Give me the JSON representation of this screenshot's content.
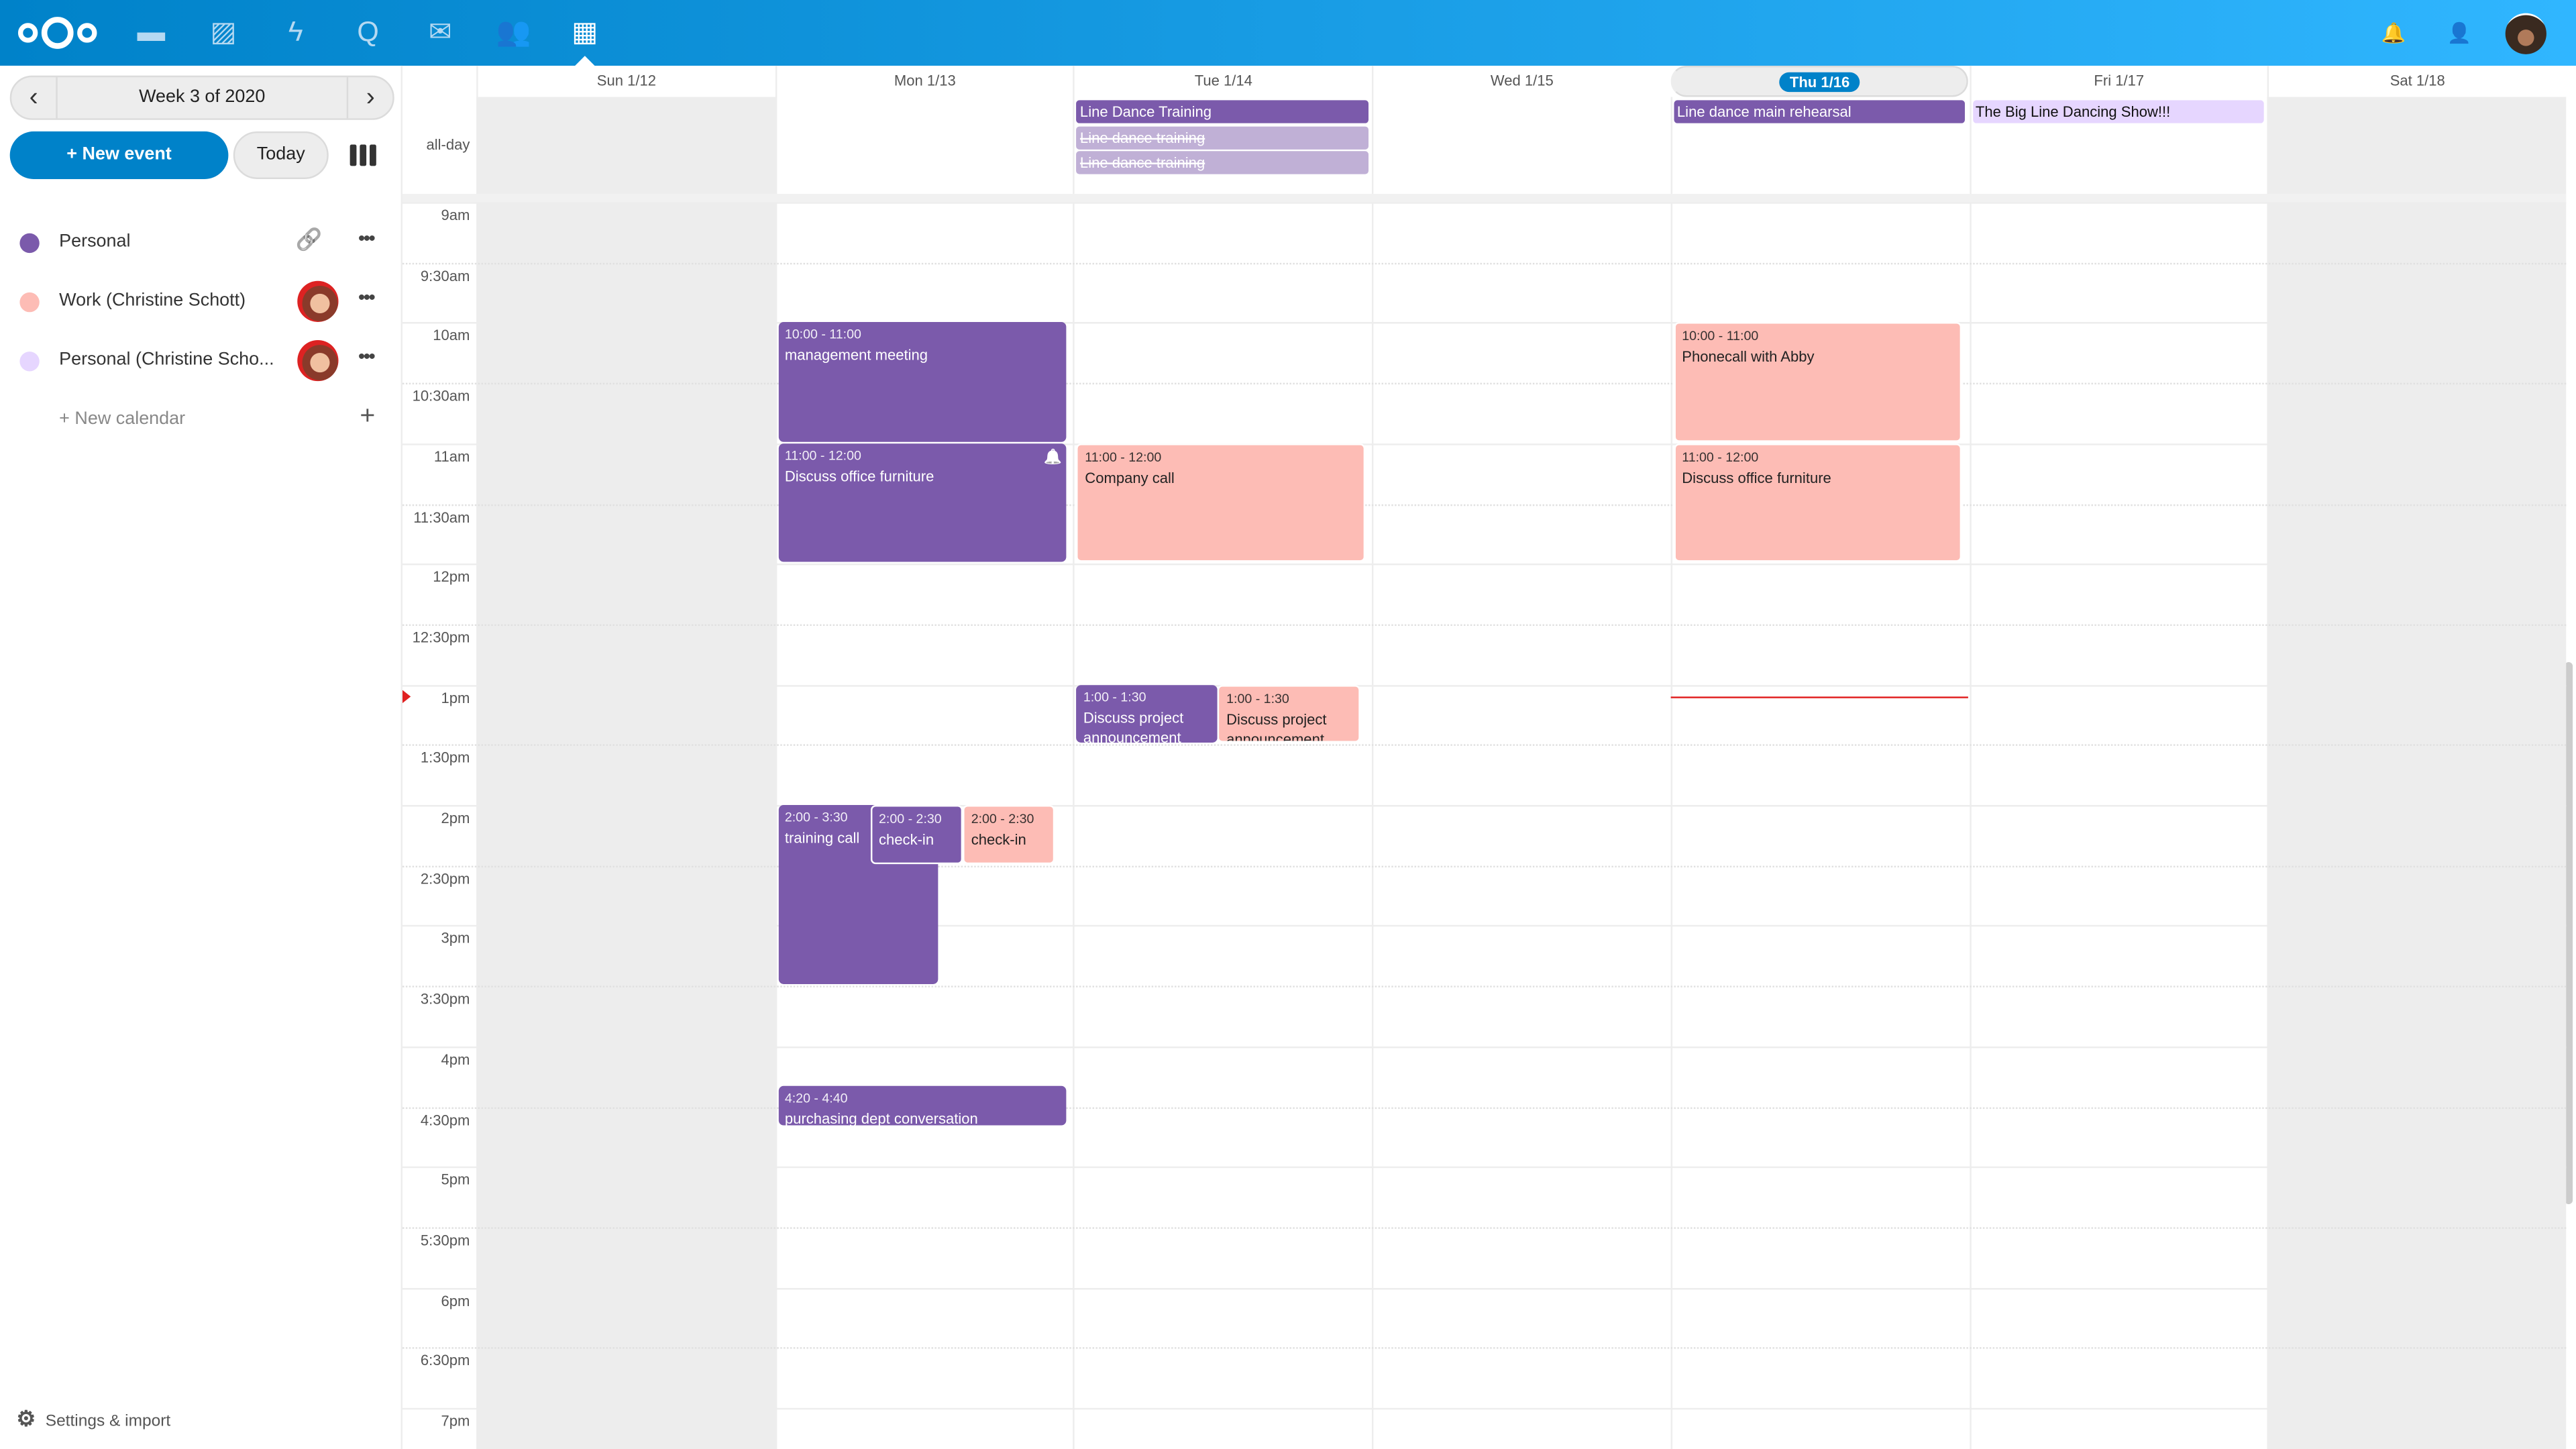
{
  "header": {
    "apps": [
      {
        "icon": "files-icon",
        "glyph": "▬"
      },
      {
        "icon": "photos-icon",
        "glyph": "▨"
      },
      {
        "icon": "activity-icon",
        "glyph": "ϟ"
      },
      {
        "icon": "talk-icon",
        "glyph": "Q"
      },
      {
        "icon": "mail-icon",
        "glyph": "✉"
      },
      {
        "icon": "contacts-icon",
        "glyph": "👥"
      },
      {
        "icon": "calendar-icon",
        "glyph": "▦",
        "active": true
      }
    ],
    "right": [
      {
        "icon": "notifications-icon",
        "glyph": "🔔"
      },
      {
        "icon": "contacts-menu-icon",
        "glyph": "👤"
      }
    ],
    "colors": {
      "start": "#0082c9",
      "end": "#30b6ff"
    }
  },
  "sidebar": {
    "week_label": "Week 3 of 2020",
    "new_event": "+ New event",
    "today": "Today",
    "calendars": [
      {
        "name": "Personal",
        "color": "#7b5aab",
        "shared": "link"
      },
      {
        "name": "Work (Christine Schott)",
        "color": "#fdbcb5",
        "shared": "avatar"
      },
      {
        "name": "Personal (Christine Scho...",
        "color": "#e6d6ff",
        "shared": "avatar"
      }
    ],
    "new_calendar": "+ New calendar",
    "settings": "Settings & import"
  },
  "calendar": {
    "all_day_label": "all-day",
    "days": [
      {
        "label": "Sun 1/12",
        "weekend": true
      },
      {
        "label": "Mon 1/13"
      },
      {
        "label": "Tue 1/14"
      },
      {
        "label": "Wed 1/15"
      },
      {
        "label": "Thu 1/16",
        "today": true
      },
      {
        "label": "Fri 1/17"
      },
      {
        "label": "Sat 1/18",
        "weekend": true
      }
    ],
    "times": [
      "9am",
      "9:30am",
      "10am",
      "10:30am",
      "11am",
      "11:30am",
      "12pm",
      "12:30pm",
      "1pm",
      "1:30pm",
      "2pm",
      "2:30pm",
      "3pm",
      "3:30pm",
      "4pm",
      "4:30pm",
      "5pm",
      "5:30pm",
      "6pm",
      "6:30pm",
      "7pm"
    ],
    "all_day_events": [
      {
        "day": 2,
        "title": "Line Dance Training",
        "style": "purple"
      },
      {
        "day": 2,
        "title": "Line dance training",
        "style": "faded"
      },
      {
        "day": 2,
        "title": "Line dance training",
        "style": "faded"
      },
      {
        "day": 4,
        "title": "Line dance main rehearsal",
        "style": "purple"
      },
      {
        "day": 5,
        "title": "The Big Line Dancing Show!!!",
        "style": "lilac"
      }
    ],
    "events": [
      {
        "day": 1,
        "start": 10,
        "end": 11,
        "time": "10:00 - 11:00",
        "title": "management meeting",
        "style": "purple"
      },
      {
        "day": 1,
        "start": 11,
        "end": 12,
        "time": "11:00 - 12:00",
        "title": "Discuss office furniture",
        "style": "purple",
        "alarm": true
      },
      {
        "day": 1,
        "start": 14,
        "end": 15.5,
        "time": "2:00 - 3:30",
        "title": "training call",
        "style": "purple"
      },
      {
        "day": 1,
        "start": 14,
        "end": 14.5,
        "time": "2:00 - 2:30",
        "title": "check-in",
        "style": "purple"
      },
      {
        "day": 1,
        "start": 14,
        "end": 14.5,
        "time": "2:00 - 2:30",
        "title": "check-in",
        "style": "pink"
      },
      {
        "day": 1,
        "start": 16.333,
        "end": 16.667,
        "time": "4:20 - 4:40",
        "title": "purchasing dept conversation",
        "style": "purple"
      },
      {
        "day": 2,
        "start": 11,
        "end": 12,
        "time": "11:00 - 12:00",
        "title": "Company call",
        "style": "pink"
      },
      {
        "day": 2,
        "start": 13,
        "end": 13.5,
        "time": "1:00 - 1:30",
        "title": "Discuss project announcement",
        "style": "purple"
      },
      {
        "day": 2,
        "start": 13,
        "end": 13.5,
        "time": "1:00 - 1:30",
        "title": "Discuss project announcement",
        "style": "pink"
      },
      {
        "day": 4,
        "start": 10,
        "end": 11,
        "time": "10:00 - 11:00",
        "title": "Phonecall with Abby",
        "style": "pink"
      },
      {
        "day": 4,
        "start": 11,
        "end": 12,
        "time": "11:00 - 12:00",
        "title": "Discuss office furniture",
        "style": "pink"
      }
    ],
    "now": {
      "day": 4,
      "hour": 13.1
    },
    "colors": {
      "personal": "#7b5aab",
      "work": "#fdbcb5",
      "shared_personal": "#e6d6ff",
      "today": "#0082c9",
      "now": "#e02020"
    }
  }
}
